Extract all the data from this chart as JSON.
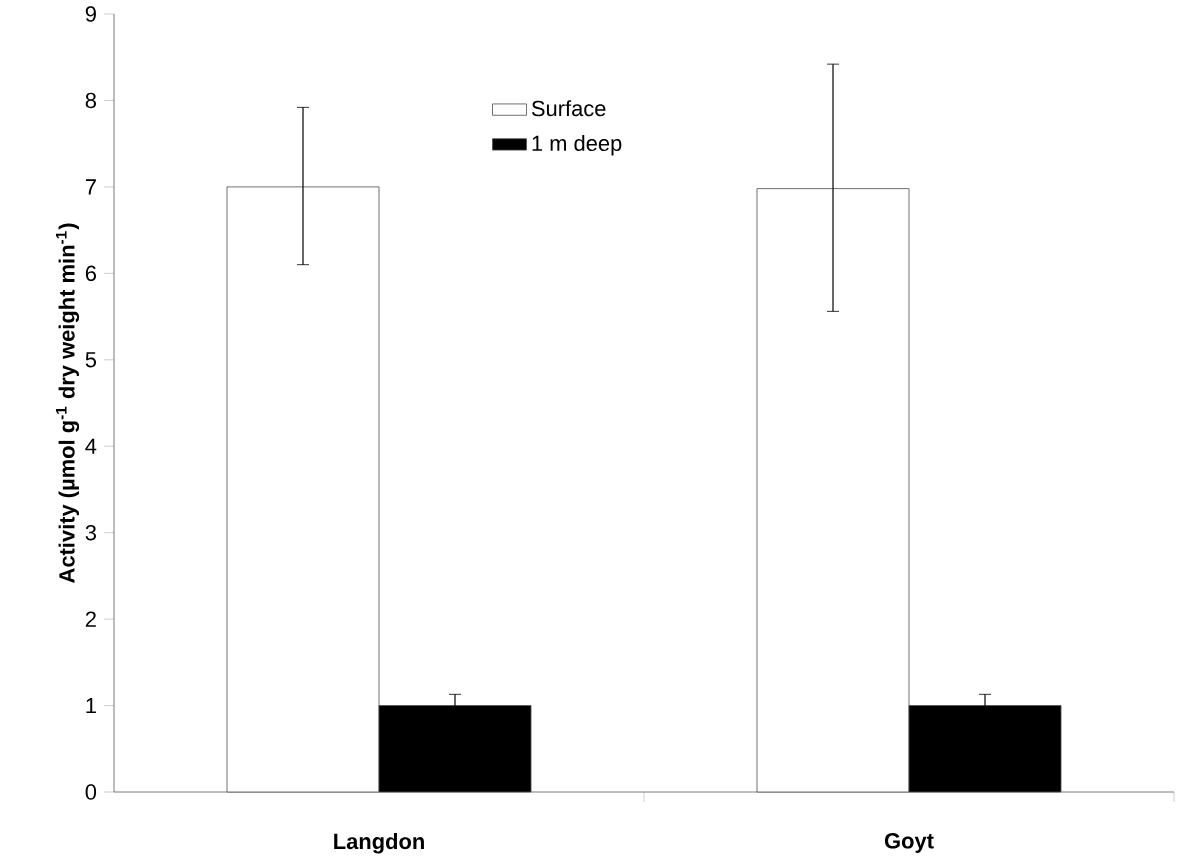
{
  "chart_data": {
    "type": "bar",
    "ylabel": "Activity (µmol g$^{-1}$ dry weight min$^{-1}$)",
    "categories": [
      "Langdon",
      "Goyt"
    ],
    "series": [
      {
        "name": "Surface",
        "color": "#ffffff",
        "values": [
          7.0,
          6.98
        ],
        "errors": [
          [
            6.1,
            7.92
          ],
          [
            5.56,
            8.42
          ]
        ]
      },
      {
        "name": "1 m deep",
        "color": "#000000",
        "values": [
          1.0,
          1.0
        ],
        "errors": [
          0.13,
          0.13
        ]
      }
    ],
    "ylim": [
      0,
      9
    ],
    "yticks": [
      0,
      1,
      2,
      3,
      4,
      5,
      6,
      7,
      8,
      9
    ],
    "grid": false,
    "legend": "top"
  }
}
